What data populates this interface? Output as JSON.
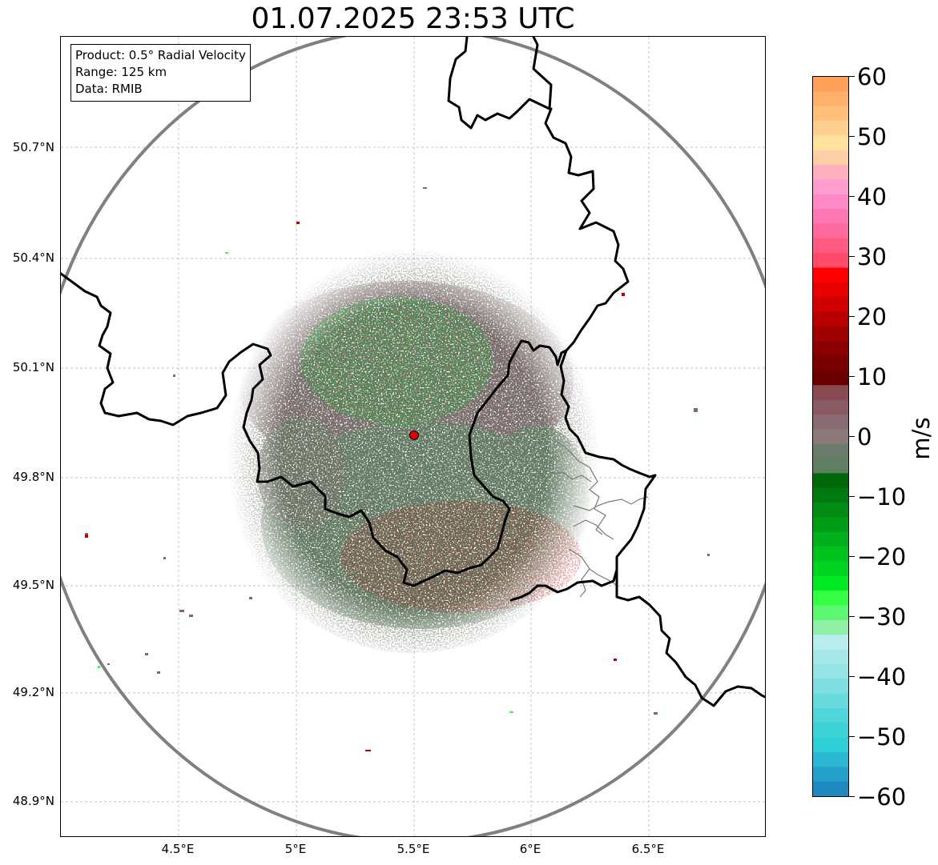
{
  "title": "01.07.2025 23:53 UTC",
  "info": {
    "product": "Product: 0.5° Radial Velocity",
    "range": "Range: 125 km",
    "source": "Data: RMIB"
  },
  "lat_labels": [
    "50.7°N",
    "50.4°N",
    "50.1°N",
    "49.8°N",
    "49.5°N",
    "49.2°N",
    "48.9°N"
  ],
  "lon_labels": [
    "4.5°E",
    "5°E",
    "5.5°E",
    "6°E",
    "6.5°E"
  ],
  "radar_site": {
    "lat": 49.914,
    "lon": 5.505
  },
  "colorbar": {
    "unit": "m/s",
    "min": -60,
    "max": 60,
    "tick_labels": [
      "60",
      "50",
      "40",
      "30",
      "20",
      "10",
      "0",
      "−10",
      "−20",
      "−30",
      "−40",
      "−50",
      "−60"
    ],
    "bands": [
      "#ff9f5a",
      "#ffb06a",
      "#ffc07a",
      "#ffd08f",
      "#ffe29c",
      "#ffd0a8",
      "#ffb0c0",
      "#ff9cd0",
      "#ff88c8",
      "#ff78b4",
      "#ff6a9c",
      "#ff5a82",
      "#ff4a6a",
      "#ff0000",
      "#e60000",
      "#d00000",
      "#b80000",
      "#a00000",
      "#8a0000",
      "#780000",
      "#6a0000",
      "#8a4a52",
      "#8a5a62",
      "#8a6a72",
      "#8a7a7a",
      "#6b7b6b",
      "#5f8060",
      "#00680a",
      "#007a0e",
      "#008c12",
      "#009e16",
      "#00b01a",
      "#00c21e",
      "#00d422",
      "#00ea26",
      "#33ff44",
      "#5cf870",
      "#90f0a8",
      "#b8ecee",
      "#a8e8ea",
      "#94e4e6",
      "#7edee0",
      "#66dadc",
      "#50d6d8",
      "#3cd2d6",
      "#2ed0d8",
      "#2ab8d2",
      "#25a0c8",
      "#1e88c0"
    ]
  },
  "colors": {
    "approaching": "#5d7c5f",
    "receding": "#86656f",
    "border": "#000000",
    "range_ring": "#808080"
  }
}
